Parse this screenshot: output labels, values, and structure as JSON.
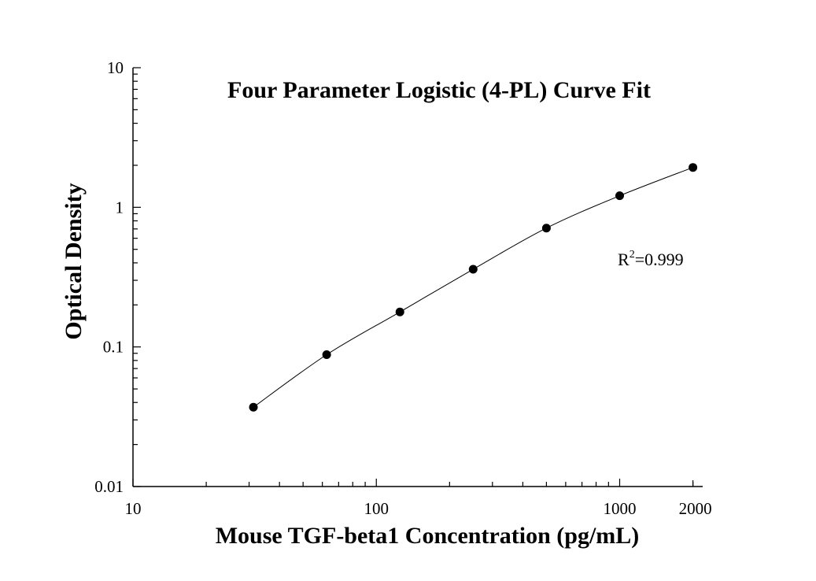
{
  "chart_data": {
    "type": "scatter",
    "title": "Four Parameter Logistic (4-PL) Curve Fit",
    "xlabel": "Mouse TGF-beta1 Concentration (pg/mL)",
    "ylabel": "Optical Density",
    "x_scale": "log",
    "y_scale": "log",
    "xlim": [
      10,
      2000
    ],
    "ylim": [
      0.01,
      10
    ],
    "x_ticks": [
      {
        "value": 10,
        "label": "10"
      },
      {
        "value": 100,
        "label": "100"
      },
      {
        "value": 1000,
        "label": "1000"
      },
      {
        "value": 2000,
        "label": "2000"
      }
    ],
    "y_ticks": [
      {
        "value": 0.01,
        "label": "0.01"
      },
      {
        "value": 0.1,
        "label": "0.1"
      },
      {
        "value": 1,
        "label": "1"
      },
      {
        "value": 10,
        "label": "10"
      }
    ],
    "grid": false,
    "series": [
      {
        "points": [
          {
            "x": 31.25,
            "y": 0.037
          },
          {
            "x": 62.5,
            "y": 0.088
          },
          {
            "x": 125,
            "y": 0.178
          },
          {
            "x": 250,
            "y": 0.36
          },
          {
            "x": 500,
            "y": 0.71
          },
          {
            "x": 1000,
            "y": 1.21
          },
          {
            "x": 2000,
            "y": 1.93
          }
        ],
        "marker": "filled-circle",
        "color": "#000000",
        "fit_line": "4PL"
      }
    ],
    "annotation": {
      "base": "R",
      "superscript": "2",
      "value": "=0.999"
    }
  }
}
